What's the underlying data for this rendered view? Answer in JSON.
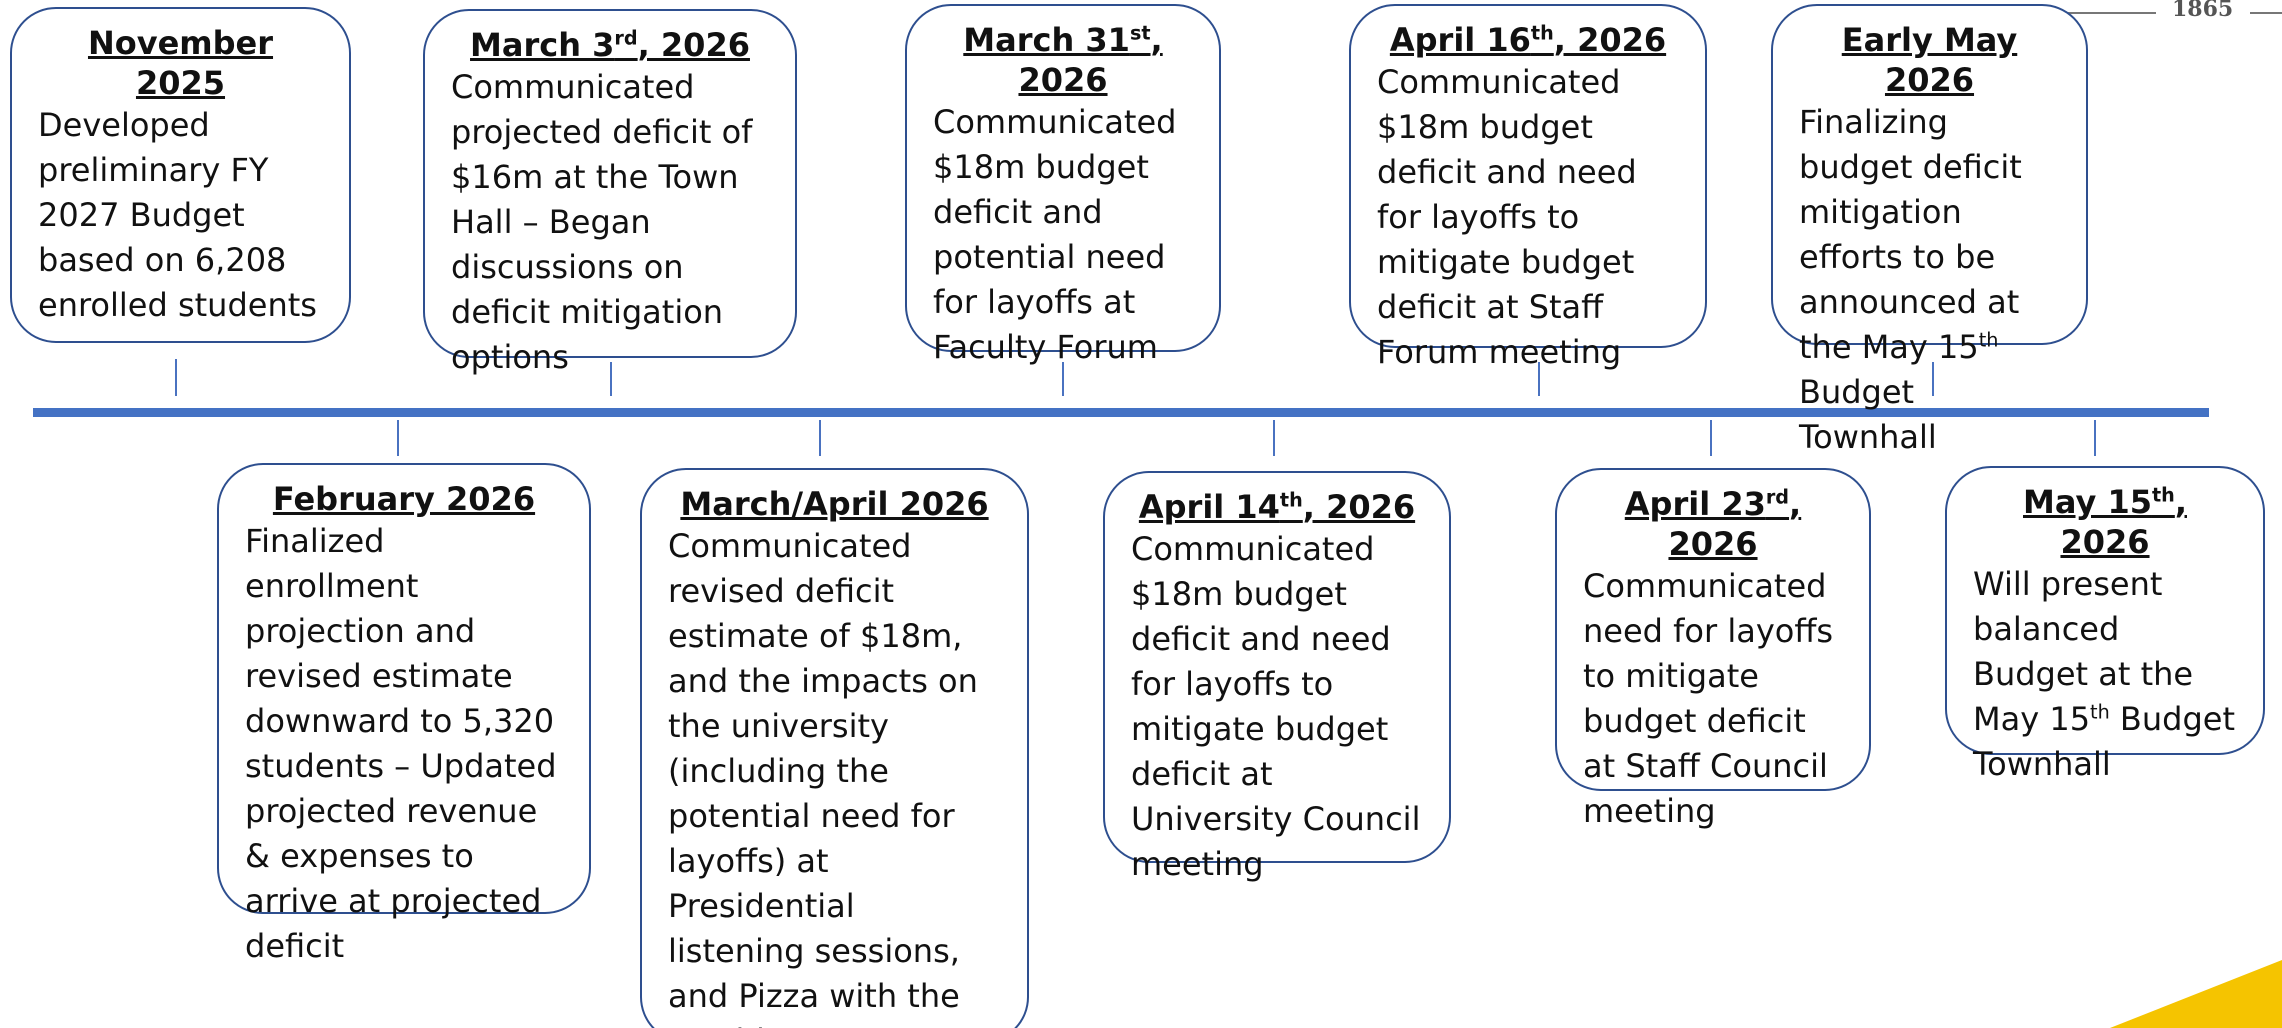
{
  "logo_text": "1865",
  "events": [
    {
      "title": [
        {
          "t": "November 2025"
        }
      ],
      "body": [
        {
          "t": "Developed preliminary FY 2027 Budget based on 6,208 enrolled students"
        }
      ]
    },
    {
      "title": [
        {
          "t": "March 3"
        },
        {
          "t": "rd",
          "sup": true
        },
        {
          "t": ", 2026"
        }
      ],
      "body": [
        {
          "t": "Communicated projected deficit of $16m at the Town Hall – Began discussions on deficit mitigation options"
        }
      ]
    },
    {
      "title": [
        {
          "t": "March 31"
        },
        {
          "t": "st",
          "sup": true
        },
        {
          "t": ", 2026"
        }
      ],
      "body": [
        {
          "t": "Communicated $18m budget deficit and potential need for layoffs at Faculty Forum"
        }
      ]
    },
    {
      "title": [
        {
          "t": "April 16"
        },
        {
          "t": "th",
          "sup": true
        },
        {
          "t": ", 2026"
        }
      ],
      "body": [
        {
          "t": "Communicated $18m budget deficit and need for layoffs to mitigate budget deficit at Staff Forum meeting"
        }
      ]
    },
    {
      "title": [
        {
          "t": "Early May 2026"
        }
      ],
      "body": [
        {
          "t": "Finalizing budget deficit mitigation efforts to be announced at the May 15"
        },
        {
          "t": "th",
          "sup": true
        },
        {
          "t": " Budget Townhall"
        }
      ]
    },
    {
      "title": [
        {
          "t": "February 2026"
        }
      ],
      "body": [
        {
          "t": "Finalized enrollment projection and revised estimate downward to 5,320 students – Updated projected revenue & expenses to arrive at projected deficit"
        }
      ]
    },
    {
      "title": [
        {
          "t": "March/April 2026"
        }
      ],
      "body": [
        {
          "t": "Communicated revised deficit estimate of $18m, and the impacts on the university (including the potential need for layoffs) at Presidential listening sessions, and Pizza with the President"
        }
      ]
    },
    {
      "title": [
        {
          "t": "April 14"
        },
        {
          "t": "th",
          "sup": true
        },
        {
          "t": ", 2026"
        }
      ],
      "body": [
        {
          "t": "Communicated $18m budget deficit and need for layoffs to mitigate budget deficit at University Council meeting"
        }
      ]
    },
    {
      "title": [
        {
          "t": "April 23"
        },
        {
          "t": "rd",
          "sup": true
        },
        {
          "t": ", 2026"
        }
      ],
      "body": [
        {
          "t": "Communicated need for layoffs to mitigate budget deficit at Staff Council meeting"
        }
      ]
    },
    {
      "title": [
        {
          "t": "May 15"
        },
        {
          "t": "th",
          "sup": true
        },
        {
          "t": ", 2026"
        }
      ],
      "body": [
        {
          "t": "Will present balanced Budget at the May 15"
        },
        {
          "t": "th",
          "sup": true
        },
        {
          "t": " Budget Townhall"
        }
      ]
    }
  ]
}
